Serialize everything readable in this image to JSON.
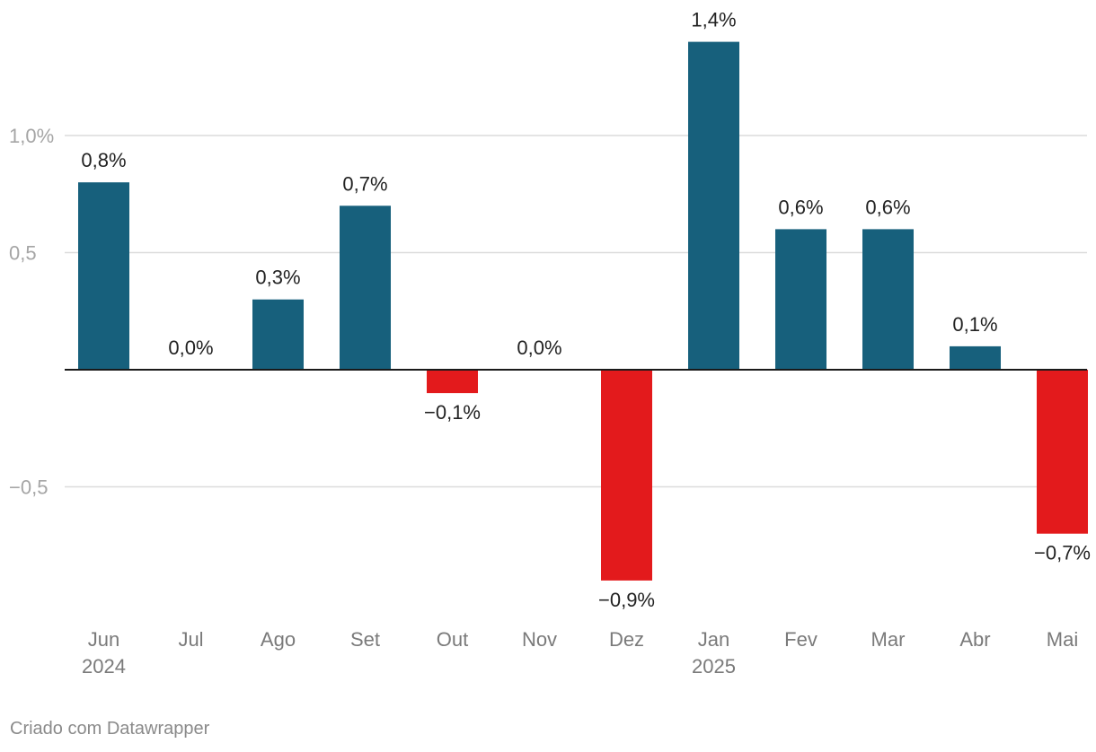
{
  "chart_data": {
    "type": "bar",
    "categories": [
      "Jun",
      "Jul",
      "Ago",
      "Set",
      "Out",
      "Nov",
      "Dez",
      "Jan",
      "Fev",
      "Mar",
      "Abr",
      "Mai"
    ],
    "category_sublabels": [
      "2024",
      "",
      "",
      "",
      "",
      "",
      "",
      "2025",
      "",
      "",
      "",
      ""
    ],
    "values": [
      0.8,
      0.0,
      0.3,
      0.7,
      -0.1,
      0.0,
      -0.9,
      1.4,
      0.6,
      0.6,
      0.1,
      -0.7
    ],
    "data_labels": [
      "0,8%",
      "0,0%",
      "0,3%",
      "0,7%",
      "−0,1%",
      "0,0%",
      "−0,9%",
      "1,4%",
      "0,6%",
      "0,6%",
      "0,1%",
      "−0,7%"
    ],
    "yticks": [
      {
        "value": 1.0,
        "label": "1,0%"
      },
      {
        "value": 0.5,
        "label": "0,5"
      },
      {
        "value": -0.5,
        "label": "−0,5"
      }
    ],
    "ylim": [
      -1.05,
      1.5
    ],
    "grid": true,
    "colors": {
      "positive": "#17607c",
      "negative": "#e31a1c"
    }
  },
  "footer": {
    "credit": "Criado com Datawrapper"
  }
}
